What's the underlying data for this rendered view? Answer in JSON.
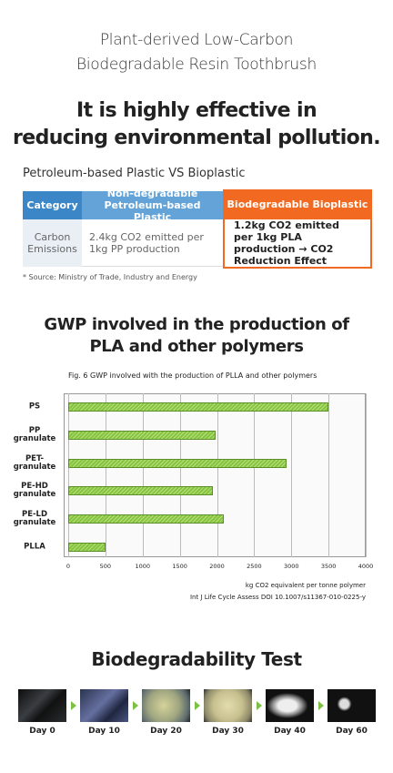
{
  "header": {
    "title_lines": [
      "Plant-derived Low-Carbon",
      "Biodegradable Resin Toothbrush"
    ],
    "headline_lines": [
      "It is highly effective in",
      "reducing environmental pollution."
    ]
  },
  "comparison": {
    "title": "Petroleum-based Plastic VS Bioplastic",
    "headers": [
      "Category",
      "Non-degradable Petroleum-based Plastic",
      "Biodegradable Bioplastic"
    ],
    "rows": [
      [
        "Carbon Emissions",
        "2.4kg CO2 emitted per 1kg PP production",
        "1.2kg CO2 emitted per 1kg PLA production → CO2 Reduction Effect"
      ]
    ],
    "source": "* Source: Ministry of Trade, Industry and Energy"
  },
  "gwp_title_lines": [
    "GWP involved in the production of",
    "PLA and other polymers"
  ],
  "chart_data": {
    "type": "bar",
    "orientation": "horizontal",
    "title": "Fig. 6 GWP involved with the production of PLLA and other polymers",
    "categories": [
      "PS",
      "PP granulate",
      "PET-granulate",
      "PE-HD granulate",
      "PE-LD granulate",
      "PLLA"
    ],
    "values": [
      3500,
      1980,
      2930,
      1940,
      2090,
      500
    ],
    "color": "#86c440",
    "xlim": [
      0,
      4000
    ],
    "xticks": [
      0,
      500,
      1000,
      1500,
      2000,
      2500,
      3000,
      3500,
      4000
    ],
    "grid": true,
    "xlabel": "kg CO2 equivalent per tonne polymer",
    "source": "Int J Life Cycle Assess DOI 10.1007/s11367-010-0225-y"
  },
  "test": {
    "title": "Biodegradability Test",
    "days": [
      "Day 0",
      "Day 10",
      "Day 20",
      "Day 30",
      "Day 40",
      "Day 60"
    ]
  }
}
